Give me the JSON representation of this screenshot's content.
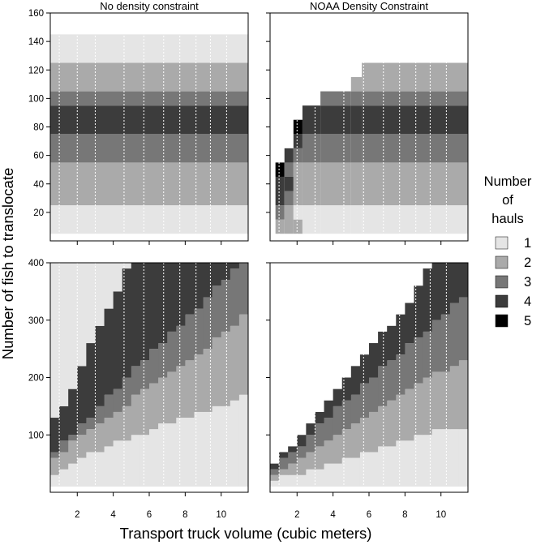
{
  "chart_data": {
    "type": "heatmap",
    "xlabel": "Transport truck volume (cubic meters)",
    "ylabel": "Number of fish to translocate",
    "legend": {
      "title_lines": [
        "Number",
        "of",
        "hauls"
      ],
      "placement": "right",
      "entries": [
        {
          "label": "1",
          "value": 1,
          "color": "#e5e5e5"
        },
        {
          "label": "2",
          "value": 2,
          "color": "#aaaaaa"
        },
        {
          "label": "3",
          "value": 3,
          "color": "#777777"
        },
        {
          "label": "4",
          "value": 4,
          "color": "#3c3c3c"
        },
        {
          "label": "5",
          "value": 5,
          "color": "#000000"
        }
      ]
    },
    "x_ticks": [
      2,
      4,
      6,
      8,
      10
    ],
    "x_range": [
      0.5,
      11.5
    ],
    "vertical_dotted_lines_at": [
      1,
      2,
      3,
      4.6,
      5.7,
      6.8,
      7.7,
      8.6,
      9.4,
      10.3
    ],
    "panels": [
      {
        "id": "top-left",
        "title": "No density constraint",
        "ylim": [
          0,
          160
        ],
        "y_ticks": [
          20,
          40,
          60,
          80,
          100,
          120,
          140,
          160
        ],
        "description": "Hauls vary only with number of fish; bands constant across truck volume",
        "bands": [
          {
            "hauls": 1,
            "from": 5,
            "to": 25
          },
          {
            "hauls": 2,
            "from": 25,
            "to": 55
          },
          {
            "hauls": 3,
            "from": 55,
            "to": 75
          },
          {
            "hauls": 4,
            "from": 75,
            "to": 95
          },
          {
            "hauls": 3,
            "from": 95,
            "to": 105
          },
          {
            "hauls": 2,
            "from": 105,
            "to": 125
          },
          {
            "hauls": 1,
            "from": 125,
            "to": 145
          }
        ]
      },
      {
        "id": "top-right",
        "title": "NOAA Density Constraint",
        "ylim": [
          0,
          160
        ],
        "y_ticks": [
          20,
          40,
          60,
          80,
          100,
          120,
          140,
          160
        ],
        "columns": [
          {
            "x": 0.8,
            "segments": [
              [
                5,
                15,
                2
              ],
              [
                15,
                25,
                3
              ],
              [
                25,
                45,
                4
              ],
              [
                45,
                55,
                5
              ]
            ]
          },
          {
            "x": 1.3,
            "segments": [
              [
                5,
                25,
                2
              ],
              [
                25,
                35,
                3
              ],
              [
                35,
                45,
                4
              ],
              [
                45,
                55,
                3
              ],
              [
                55,
                65,
                4
              ]
            ]
          },
          {
            "x": 1.8,
            "segments": [
              [
                5,
                15,
                2
              ],
              [
                15,
                25,
                1
              ],
              [
                25,
                55,
                2
              ],
              [
                55,
                65,
                3
              ],
              [
                65,
                75,
                4
              ],
              [
                75,
                85,
                5
              ]
            ]
          },
          {
            "x": 2.3,
            "segments": [
              [
                5,
                25,
                1
              ],
              [
                25,
                55,
                2
              ],
              [
                55,
                75,
                3
              ],
              [
                75,
                95,
                4
              ]
            ]
          },
          {
            "x": 3.3,
            "segments": [
              [
                5,
                25,
                1
              ],
              [
                25,
                55,
                2
              ],
              [
                55,
                75,
                3
              ],
              [
                75,
                95,
                4
              ],
              [
                95,
                105,
                3
              ]
            ]
          },
          {
            "x": 5.0,
            "segments": [
              [
                5,
                25,
                1
              ],
              [
                25,
                55,
                2
              ],
              [
                55,
                75,
                3
              ],
              [
                75,
                95,
                4
              ],
              [
                95,
                105,
                3
              ],
              [
                105,
                115,
                2
              ]
            ]
          },
          {
            "x": 5.6,
            "segments": [
              [
                5,
                25,
                1
              ],
              [
                25,
                55,
                2
              ],
              [
                55,
                75,
                3
              ],
              [
                75,
                95,
                4
              ],
              [
                95,
                105,
                3
              ],
              [
                105,
                125,
                2
              ]
            ]
          }
        ]
      },
      {
        "id": "bottom-left",
        "title": "",
        "ylim": [
          0,
          400
        ],
        "y_ticks": [
          100,
          200,
          300,
          400
        ],
        "description": "Staircase bands; haul-count boundaries rise with truck volume",
        "boundaries": [
          {
            "between": "1-2",
            "points": [
              [
                0.6,
                30
              ],
              [
                1.5,
                48
              ],
              [
                3.0,
                72
              ],
              [
                5.0,
                95
              ],
              [
                7.0,
                118
              ],
              [
                9.0,
                140
              ],
              [
                10.5,
                155
              ],
              [
                11.5,
                175
              ]
            ]
          },
          {
            "between": "2-3",
            "points": [
              [
                0.6,
                50
              ],
              [
                1.5,
                80
              ],
              [
                3.0,
                118
              ],
              [
                5.0,
                160
              ],
              [
                7.0,
                205
              ],
              [
                9.0,
                245
              ],
              [
                10.5,
                285
              ],
              [
                11.5,
                315
              ]
            ]
          },
          {
            "between": "3-4",
            "points": [
              [
                0.6,
                62
              ],
              [
                1.5,
                95
              ],
              [
                3.0,
                140
              ],
              [
                5.0,
                210
              ],
              [
                7.0,
                270
              ],
              [
                9.0,
                330
              ],
              [
                10.5,
                380
              ],
              [
                11.5,
                400
              ]
            ]
          },
          {
            "between": "4-1 (upper edge)",
            "points": [
              [
                0.6,
                125
              ],
              [
                1.5,
                160
              ],
              [
                2.5,
                245
              ],
              [
                3.5,
                300
              ],
              [
                4.5,
                370
              ],
              [
                5.0,
                400
              ]
            ]
          }
        ]
      },
      {
        "id": "bottom-right",
        "title": "",
        "ylim": [
          0,
          400
        ],
        "y_ticks": [
          100,
          200,
          300,
          400
        ],
        "description": "Narrow diagonal staircase bands of hauls",
        "boundaries": [
          {
            "between": "1-2",
            "points": [
              [
                0.6,
                22
              ],
              [
                2.0,
                30
              ],
              [
                4.0,
                50
              ],
              [
                6.0,
                70
              ],
              [
                8.0,
                88
              ],
              [
                10.0,
                108
              ],
              [
                11.5,
                115
              ]
            ]
          },
          {
            "between": "2-3",
            "points": [
              [
                0.6,
                30
              ],
              [
                2.0,
                55
              ],
              [
                4.0,
                100
              ],
              [
                6.0,
                135
              ],
              [
                8.0,
                170
              ],
              [
                10.0,
                210
              ],
              [
                11.5,
                230
              ]
            ]
          },
          {
            "between": "3-4",
            "points": [
              [
                0.6,
                38
              ],
              [
                2.0,
                75
              ],
              [
                4.0,
                140
              ],
              [
                6.0,
                195
              ],
              [
                8.0,
                250
              ],
              [
                10.0,
                305
              ],
              [
                11.5,
                345
              ]
            ]
          },
          {
            "between": "4-blank",
            "points": [
              [
                0.6,
                44
              ],
              [
                2.0,
                90
              ],
              [
                4.0,
                165
              ],
              [
                6.0,
                250
              ],
              [
                8.0,
                320
              ],
              [
                9.5,
                400
              ]
            ]
          }
        ]
      }
    ]
  }
}
